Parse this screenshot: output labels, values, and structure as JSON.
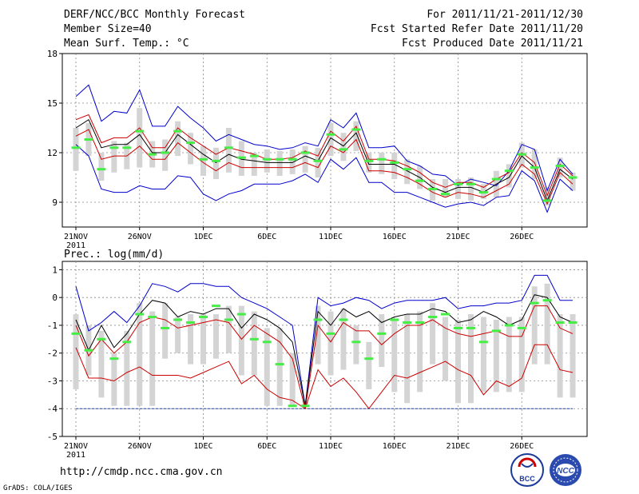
{
  "header": {
    "left": [
      "DERF/NCC/BCC Monthly Forecast",
      "Member Size=40",
      "Mean Surf. Temp.: °C"
    ],
    "right": [
      "For 2011/11/21-2011/12/30",
      "Fcst Started Refer Date 2011/11/20",
      "Fcst Produced Date 2011/11/21"
    ]
  },
  "footer": {
    "url": "http://cmdp.ncc.cma.gov.cn",
    "grads": "GrADS: COLA/IGES",
    "logo_bcc": "BCC",
    "logo_ncc": "NCC"
  },
  "colors": {
    "spread": "#0000cc",
    "pct": "#cc0000",
    "mean": "#000000",
    "obs": "#44ee44",
    "box": "#d4d4d4",
    "floor": "#1f3f9f"
  },
  "chart_data": [
    {
      "type": "line",
      "title": "Mean Surf. Temp.: °C",
      "ylim": [
        7.5,
        18
      ],
      "yticks": [
        9,
        12,
        15,
        18
      ],
      "x": [
        1,
        2,
        3,
        4,
        5,
        6,
        7,
        8,
        9,
        10,
        11,
        12,
        13,
        14,
        15,
        16,
        17,
        18,
        19,
        20,
        21,
        22,
        23,
        24,
        25,
        26,
        27,
        28,
        29,
        30,
        31,
        32,
        33,
        34,
        35,
        36,
        37,
        38,
        39,
        40
      ],
      "xticks": [
        {
          "x": 1,
          "label": "21NOV",
          "sub": "2011"
        },
        {
          "x": 6,
          "label": "26NOV"
        },
        {
          "x": 11,
          "label": "1DEC"
        },
        {
          "x": 16,
          "label": "6DEC"
        },
        {
          "x": 21,
          "label": "11DEC"
        },
        {
          "x": 26,
          "label": "16DEC"
        },
        {
          "x": 31,
          "label": "21DEC"
        },
        {
          "x": 36,
          "label": "26DEC"
        }
      ],
      "series": [
        {
          "name": "max",
          "values": [
            15.4,
            16.1,
            13.9,
            14.5,
            14.4,
            15.8,
            13.6,
            13.6,
            14.8,
            14.1,
            13.5,
            12.7,
            13.1,
            12.8,
            12.5,
            12.4,
            12.2,
            12.3,
            12.6,
            12.4,
            14.0,
            13.5,
            14.4,
            12.3,
            12.3,
            12.4,
            11.5,
            11.2,
            10.7,
            10.6,
            10.0,
            10.4,
            10.2,
            10.0,
            10.9,
            12.5,
            12.2,
            9.7,
            11.6,
            10.7
          ]
        },
        {
          "name": "p90",
          "values": [
            14.0,
            14.3,
            12.6,
            12.9,
            12.9,
            13.5,
            12.3,
            12.3,
            13.5,
            12.9,
            12.4,
            11.9,
            12.3,
            12.1,
            11.9,
            11.6,
            11.6,
            11.7,
            12.1,
            11.8,
            13.3,
            12.7,
            13.6,
            11.6,
            11.6,
            11.5,
            11.2,
            10.8,
            10.2,
            9.9,
            10.2,
            10.2,
            9.9,
            10.4,
            10.8,
            12.0,
            11.4,
            9.4,
            11.3,
            10.6
          ]
        },
        {
          "name": "mean",
          "values": [
            13.5,
            14.0,
            12.3,
            12.5,
            12.5,
            13.1,
            12.0,
            12.0,
            13.1,
            12.5,
            11.9,
            11.4,
            11.9,
            11.6,
            11.5,
            11.4,
            11.4,
            11.4,
            11.8,
            11.5,
            12.9,
            12.4,
            13.2,
            11.3,
            11.3,
            11.3,
            10.9,
            10.5,
            9.9,
            9.6,
            9.9,
            9.9,
            9.6,
            10.1,
            10.5,
            11.8,
            11.1,
            9.1,
            11.0,
            10.4
          ]
        },
        {
          "name": "p10",
          "values": [
            13.0,
            13.4,
            11.6,
            11.8,
            11.8,
            12.4,
            11.6,
            11.6,
            12.6,
            12.0,
            11.4,
            10.9,
            11.4,
            11.1,
            11.1,
            11.1,
            11.1,
            11.1,
            11.4,
            11.1,
            12.4,
            12.0,
            12.8,
            10.9,
            10.9,
            10.8,
            10.5,
            10.1,
            9.6,
            9.3,
            9.6,
            9.5,
            9.3,
            9.7,
            10.1,
            11.3,
            10.7,
            8.9,
            10.8,
            10.1
          ]
        },
        {
          "name": "min",
          "values": [
            12.5,
            11.8,
            9.8,
            9.6,
            9.6,
            10.0,
            9.8,
            9.8,
            10.6,
            10.5,
            9.5,
            9.1,
            9.5,
            9.7,
            10.1,
            10.1,
            10.1,
            10.3,
            10.7,
            10.2,
            11.6,
            11.0,
            11.7,
            10.2,
            10.2,
            9.6,
            9.6,
            9.3,
            9.0,
            8.7,
            8.9,
            9.0,
            8.8,
            9.3,
            9.4,
            10.9,
            10.3,
            8.4,
            10.4,
            9.7
          ]
        }
      ],
      "boxes": [
        [
          10.9,
          13.5
        ],
        [
          11.8,
          13.8
        ],
        [
          10.3,
          12.0
        ],
        [
          10.8,
          12.7
        ],
        [
          11.0,
          12.6
        ],
        [
          11.1,
          14.7
        ],
        [
          11.1,
          12.7
        ],
        [
          10.9,
          12.8
        ],
        [
          11.8,
          13.9
        ],
        [
          11.3,
          13.2
        ],
        [
          10.6,
          12.4
        ],
        [
          10.4,
          12.3
        ],
        [
          10.8,
          13.5
        ],
        [
          10.6,
          12.7
        ],
        [
          10.6,
          12.0
        ],
        [
          10.8,
          12.2
        ],
        [
          10.6,
          12.1
        ],
        [
          10.7,
          12.2
        ],
        [
          10.8,
          12.4
        ],
        [
          10.5,
          12.3
        ],
        [
          11.8,
          13.8
        ],
        [
          11.5,
          13.2
        ],
        [
          12.1,
          13.9
        ],
        [
          10.8,
          12.0
        ],
        [
          10.7,
          12.0
        ],
        [
          10.4,
          12.0
        ],
        [
          10.1,
          11.6
        ],
        [
          9.8,
          11.2
        ],
        [
          9.1,
          10.4
        ],
        [
          9.3,
          10.4
        ],
        [
          9.2,
          10.4
        ],
        [
          9.1,
          10.5
        ],
        [
          9.2,
          10.1
        ],
        [
          9.3,
          10.9
        ],
        [
          9.9,
          11.3
        ],
        [
          11.1,
          12.6
        ],
        [
          10.4,
          12.2
        ],
        [
          8.8,
          9.9
        ],
        [
          10.5,
          11.7
        ],
        [
          9.7,
          10.8
        ]
      ],
      "obs": [
        12.3,
        12.8,
        11.0,
        12.3,
        12.3,
        13.3,
        11.9,
        12.0,
        13.3,
        12.6,
        11.6,
        11.5,
        12.3,
        11.7,
        11.8,
        11.6,
        11.6,
        11.6,
        12.0,
        11.5,
        13.1,
        12.2,
        13.4,
        11.5,
        11.6,
        11.4,
        11.0,
        10.3,
        9.8,
        9.5,
        10.1,
        10.1,
        9.6,
        10.4,
        10.9,
        11.9,
        11.1,
        9.1,
        11.2,
        10.5
      ]
    },
    {
      "type": "line",
      "title": "Prec.: log(mm/d)",
      "ylim": [
        -5,
        1.3
      ],
      "yticks": [
        -5,
        -4,
        -3,
        -2,
        -1,
        0,
        1
      ],
      "floor": -4,
      "x": [
        1,
        2,
        3,
        4,
        5,
        6,
        7,
        8,
        9,
        10,
        11,
        12,
        13,
        14,
        15,
        16,
        17,
        18,
        19,
        20,
        21,
        22,
        23,
        24,
        25,
        26,
        27,
        28,
        29,
        30,
        31,
        32,
        33,
        34,
        35,
        36,
        37,
        38,
        39,
        40
      ],
      "xticks": [
        {
          "x": 1,
          "label": "21NOV",
          "sub": "2011"
        },
        {
          "x": 6,
          "label": "26NOV"
        },
        {
          "x": 11,
          "label": "1DEC"
        },
        {
          "x": 16,
          "label": "6DEC"
        },
        {
          "x": 21,
          "label": "11DEC"
        },
        {
          "x": 26,
          "label": "16DEC"
        },
        {
          "x": 31,
          "label": "21DEC"
        },
        {
          "x": 36,
          "label": "26DEC"
        }
      ],
      "series": [
        {
          "name": "max",
          "values": [
            0.4,
            -1.2,
            -0.9,
            -0.5,
            -0.9,
            -0.3,
            0.5,
            0.4,
            0.2,
            0.5,
            0.5,
            0.4,
            0.4,
            0.0,
            -0.2,
            -0.4,
            -0.7,
            -1.0,
            -3.9,
            0.0,
            -0.3,
            -0.2,
            0.0,
            -0.1,
            -0.4,
            -0.2,
            -0.1,
            -0.1,
            -0.1,
            0.0,
            -0.4,
            -0.3,
            -0.3,
            -0.2,
            -0.2,
            -0.1,
            0.8,
            0.8,
            -0.1,
            -0.1
          ]
        },
        {
          "name": "mean",
          "values": [
            -0.8,
            -1.9,
            -1.0,
            -1.8,
            -1.3,
            -0.6,
            -0.1,
            -0.2,
            -0.7,
            -0.5,
            -0.6,
            -0.4,
            -0.4,
            -1.1,
            -0.6,
            -0.8,
            -1.1,
            -1.6,
            -3.9,
            -0.5,
            -1.0,
            -0.4,
            -0.7,
            -0.5,
            -0.9,
            -0.7,
            -0.6,
            -0.6,
            -0.4,
            -0.5,
            -0.9,
            -0.8,
            -0.5,
            -0.7,
            -1.0,
            -0.8,
            0.1,
            0.0,
            -0.7,
            -0.9
          ]
        },
        {
          "name": "p90",
          "values": [
            -1.0,
            -2.1,
            -1.5,
            -2.0,
            -1.6,
            -0.9,
            -0.7,
            -0.8,
            -1.1,
            -1.0,
            -0.9,
            -0.8,
            -0.9,
            -1.5,
            -1.0,
            -1.3,
            -1.6,
            -2.2,
            -4.0,
            -1.0,
            -1.6,
            -0.9,
            -1.2,
            -1.2,
            -1.7,
            -1.3,
            -1.0,
            -1.0,
            -0.8,
            -1.1,
            -1.3,
            -1.4,
            -1.3,
            -1.2,
            -1.4,
            -1.4,
            -0.3,
            -0.3,
            -1.1,
            -1.3
          ]
        },
        {
          "name": "p10",
          "values": [
            -1.8,
            -2.9,
            -2.9,
            -3.0,
            -2.7,
            -2.5,
            -2.8,
            -2.8,
            -2.8,
            -2.9,
            -2.7,
            -2.5,
            -2.3,
            -3.1,
            -2.8,
            -3.3,
            -3.6,
            -3.7,
            -4.0,
            -2.6,
            -3.2,
            -2.9,
            -3.4,
            -4.0,
            -3.4,
            -2.8,
            -2.9,
            -2.7,
            -2.5,
            -2.3,
            -2.6,
            -2.8,
            -3.5,
            -3.0,
            -3.2,
            -2.9,
            -1.7,
            -1.7,
            -2.6,
            -2.7
          ]
        }
      ],
      "boxes": [
        [
          -3.3,
          -0.6
        ],
        [
          -2.8,
          -1.0
        ],
        [
          -3.6,
          -1.2
        ],
        [
          -3.9,
          -2.0
        ],
        [
          -3.9,
          -1.2
        ],
        [
          -3.9,
          -0.2
        ],
        [
          -3.9,
          -0.5
        ],
        [
          -2.2,
          -0.2
        ],
        [
          -2.0,
          -0.7
        ],
        [
          -2.4,
          -0.6
        ],
        [
          -2.4,
          -0.6
        ],
        [
          -2.2,
          -0.6
        ],
        [
          -2.0,
          -0.3
        ],
        [
          -2.8,
          -0.3
        ],
        [
          -2.8,
          -0.5
        ],
        [
          -3.9,
          -1.1
        ],
        [
          -3.9,
          -1.1
        ],
        [
          -3.9,
          -2.0
        ],
        [
          -3.9,
          -3.7
        ],
        [
          -2.4,
          -0.3
        ],
        [
          -2.8,
          -0.5
        ],
        [
          -2.6,
          -0.4
        ],
        [
          -2.4,
          -1.0
        ],
        [
          -3.3,
          -1.6
        ],
        [
          -2.5,
          -0.6
        ],
        [
          -3.4,
          -0.8
        ],
        [
          -3.8,
          -0.6
        ],
        [
          -3.4,
          -0.5
        ],
        [
          -2.4,
          -0.2
        ],
        [
          -3.0,
          -0.7
        ],
        [
          -3.8,
          -0.8
        ],
        [
          -3.8,
          -0.6
        ],
        [
          -3.4,
          -0.7
        ],
        [
          -3.4,
          -0.8
        ],
        [
          -3.4,
          -0.7
        ],
        [
          -3.4,
          -0.7
        ],
        [
          -2.4,
          0.4
        ],
        [
          -2.4,
          0.5
        ],
        [
          -3.6,
          -0.6
        ],
        [
          -3.6,
          -0.6
        ]
      ],
      "obs": [
        -1.3,
        -1.9,
        -1.5,
        -2.2,
        -1.6,
        -0.6,
        -0.7,
        -1.1,
        -0.8,
        -0.9,
        -0.7,
        -0.3,
        -0.8,
        -0.6,
        -1.5,
        -1.6,
        -2.4,
        -3.9,
        -3.9,
        -0.8,
        -1.3,
        -0.8,
        -1.6,
        -2.2,
        -1.3,
        -0.8,
        -0.9,
        -0.9,
        -0.7,
        -0.6,
        -1.1,
        -1.1,
        -1.6,
        -1.2,
        -1.0,
        -1.1,
        -0.2,
        -0.1,
        -0.9,
        -0.9
      ]
    }
  ]
}
